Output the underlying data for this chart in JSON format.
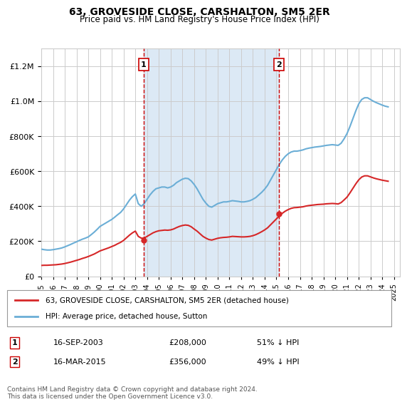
{
  "title": "63, GROVESIDE CLOSE, CARSHALTON, SM5 2ER",
  "subtitle": "Price paid vs. HM Land Registry's House Price Index (HPI)",
  "ylabel": "",
  "xlim_start": 1995.0,
  "xlim_end": 2025.5,
  "ylim": [
    0,
    1300000
  ],
  "background_color": "#ffffff",
  "plot_bg_color": "#ffffff",
  "grid_color": "#cccccc",
  "hpi_color": "#6baed6",
  "price_color": "#d62728",
  "shade_color": "#dce9f5",
  "vline_color": "#cc0000",
  "marker1_x": 2003.71,
  "marker1_label": "1",
  "marker1_price": 208000,
  "marker1_date": "16-SEP-2003",
  "marker1_pct": "51% ↓ HPI",
  "marker2_x": 2015.21,
  "marker2_label": "2",
  "marker2_price": 356000,
  "marker2_date": "16-MAR-2015",
  "marker2_pct": "49% ↓ HPI",
  "legend_line1": "63, GROVESIDE CLOSE, CARSHALTON, SM5 2ER (detached house)",
  "legend_line2": "HPI: Average price, detached house, Sutton",
  "footnote": "Contains HM Land Registry data © Crown copyright and database right 2024.\nThis data is licensed under the Open Government Licence v3.0.",
  "hpi_data_x": [
    1995.0,
    1995.25,
    1995.5,
    1995.75,
    1996.0,
    1996.25,
    1996.5,
    1996.75,
    1997.0,
    1997.25,
    1997.5,
    1997.75,
    1998.0,
    1998.25,
    1998.5,
    1998.75,
    1999.0,
    1999.25,
    1999.5,
    1999.75,
    2000.0,
    2000.25,
    2000.5,
    2000.75,
    2001.0,
    2001.25,
    2001.5,
    2001.75,
    2002.0,
    2002.25,
    2002.5,
    2002.75,
    2003.0,
    2003.25,
    2003.5,
    2003.75,
    2004.0,
    2004.25,
    2004.5,
    2004.75,
    2005.0,
    2005.25,
    2005.5,
    2005.75,
    2006.0,
    2006.25,
    2006.5,
    2006.75,
    2007.0,
    2007.25,
    2007.5,
    2007.75,
    2008.0,
    2008.25,
    2008.5,
    2008.75,
    2009.0,
    2009.25,
    2009.5,
    2009.75,
    2010.0,
    2010.25,
    2010.5,
    2010.75,
    2011.0,
    2011.25,
    2011.5,
    2011.75,
    2012.0,
    2012.25,
    2012.5,
    2012.75,
    2013.0,
    2013.25,
    2013.5,
    2013.75,
    2014.0,
    2014.25,
    2014.5,
    2014.75,
    2015.0,
    2015.25,
    2015.5,
    2015.75,
    2016.0,
    2016.25,
    2016.5,
    2016.75,
    2017.0,
    2017.25,
    2017.5,
    2017.75,
    2018.0,
    2018.25,
    2018.5,
    2018.75,
    2019.0,
    2019.25,
    2019.5,
    2019.75,
    2020.0,
    2020.25,
    2020.5,
    2020.75,
    2021.0,
    2021.25,
    2021.5,
    2021.75,
    2022.0,
    2022.25,
    2022.5,
    2022.75,
    2023.0,
    2023.25,
    2023.5,
    2023.75,
    2024.0,
    2024.25,
    2024.5
  ],
  "hpi_data_y": [
    155000,
    152000,
    150000,
    150000,
    152000,
    155000,
    158000,
    162000,
    168000,
    175000,
    182000,
    190000,
    197000,
    205000,
    212000,
    218000,
    225000,
    238000,
    252000,
    268000,
    285000,
    295000,
    305000,
    315000,
    325000,
    338000,
    352000,
    365000,
    385000,
    410000,
    435000,
    455000,
    470000,
    415000,
    400000,
    415000,
    440000,
    465000,
    485000,
    500000,
    505000,
    510000,
    510000,
    505000,
    510000,
    520000,
    535000,
    545000,
    555000,
    560000,
    558000,
    545000,
    525000,
    500000,
    470000,
    440000,
    418000,
    400000,
    395000,
    405000,
    415000,
    420000,
    425000,
    425000,
    428000,
    432000,
    430000,
    428000,
    425000,
    425000,
    428000,
    432000,
    440000,
    450000,
    465000,
    480000,
    498000,
    520000,
    550000,
    580000,
    610000,
    640000,
    665000,
    685000,
    700000,
    710000,
    715000,
    715000,
    718000,
    722000,
    728000,
    732000,
    735000,
    738000,
    740000,
    742000,
    745000,
    748000,
    750000,
    752000,
    750000,
    748000,
    760000,
    785000,
    815000,
    855000,
    900000,
    945000,
    985000,
    1010000,
    1020000,
    1020000,
    1010000,
    1000000,
    992000,
    985000,
    978000,
    972000,
    968000
  ],
  "price_data_x": [
    1995.0,
    1995.25,
    1995.5,
    1995.75,
    1996.0,
    1996.25,
    1996.5,
    1996.75,
    1997.0,
    1997.25,
    1997.5,
    1997.75,
    1998.0,
    1998.25,
    1998.5,
    1998.75,
    1999.0,
    1999.25,
    1999.5,
    1999.75,
    2000.0,
    2000.25,
    2000.5,
    2000.75,
    2001.0,
    2001.25,
    2001.5,
    2001.75,
    2002.0,
    2002.25,
    2002.5,
    2002.75,
    2003.0,
    2003.25,
    2003.5,
    2003.75,
    2004.0,
    2004.25,
    2004.5,
    2004.75,
    2005.0,
    2005.25,
    2005.5,
    2005.75,
    2006.0,
    2006.25,
    2006.5,
    2006.75,
    2007.0,
    2007.25,
    2007.5,
    2007.75,
    2008.0,
    2008.25,
    2008.5,
    2008.75,
    2009.0,
    2009.25,
    2009.5,
    2009.75,
    2010.0,
    2010.25,
    2010.5,
    2010.75,
    2011.0,
    2011.25,
    2011.5,
    2011.75,
    2012.0,
    2012.25,
    2012.5,
    2012.75,
    2013.0,
    2013.25,
    2013.5,
    2013.75,
    2014.0,
    2014.25,
    2014.5,
    2014.75,
    2015.0,
    2015.25,
    2015.5,
    2015.75,
    2016.0,
    2016.25,
    2016.5,
    2016.75,
    2017.0,
    2017.25,
    2017.5,
    2017.75,
    2018.0,
    2018.25,
    2018.5,
    2018.75,
    2019.0,
    2019.25,
    2019.5,
    2019.75,
    2020.0,
    2020.25,
    2020.5,
    2020.75,
    2021.0,
    2021.25,
    2021.5,
    2021.75,
    2022.0,
    2022.25,
    2022.5,
    2022.75,
    2023.0,
    2023.25,
    2023.5,
    2023.75,
    2024.0,
    2024.25,
    2024.5
  ],
  "price_data_y": [
    62000,
    63000,
    63000,
    64000,
    65000,
    66000,
    68000,
    70000,
    73000,
    77000,
    81000,
    86000,
    91000,
    96000,
    102000,
    107000,
    113000,
    120000,
    127000,
    136000,
    145000,
    151000,
    157000,
    163000,
    170000,
    177000,
    186000,
    194000,
    205000,
    220000,
    235000,
    248000,
    258000,
    228000,
    218000,
    218000,
    228000,
    238000,
    248000,
    255000,
    260000,
    262000,
    264000,
    263000,
    265000,
    270000,
    278000,
    285000,
    290000,
    293000,
    291000,
    283000,
    270000,
    258000,
    243000,
    228000,
    218000,
    210000,
    207000,
    212000,
    217000,
    220000,
    222000,
    223000,
    225000,
    228000,
    227000,
    226000,
    225000,
    225000,
    226000,
    228000,
    232000,
    238000,
    246000,
    255000,
    265000,
    277000,
    294000,
    311000,
    328000,
    345000,
    360000,
    372000,
    381000,
    388000,
    392000,
    393000,
    395000,
    397000,
    401000,
    404000,
    406000,
    408000,
    410000,
    411000,
    412000,
    414000,
    415000,
    416000,
    415000,
    413000,
    421000,
    436000,
    452000,
    476000,
    502000,
    528000,
    551000,
    567000,
    574000,
    574000,
    568000,
    562000,
    557000,
    553000,
    549000,
    546000,
    543000
  ]
}
